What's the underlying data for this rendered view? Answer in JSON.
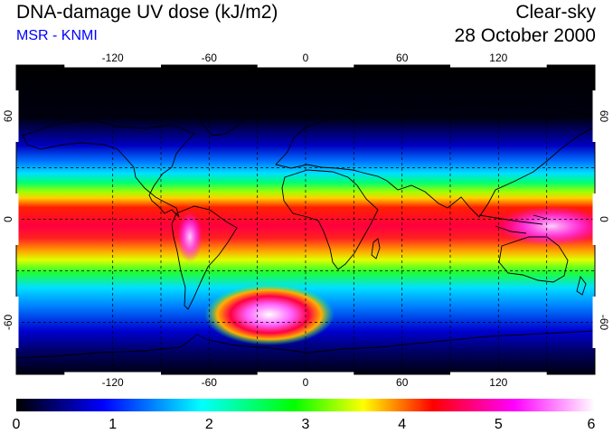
{
  "header": {
    "title": "DNA-damage UV dose (kJ/m2)",
    "source": "MSR - KNMI",
    "sky_condition": "Clear-sky",
    "date": "28 October 2000"
  },
  "map": {
    "projection": "equirectangular",
    "lon_range": [
      -180,
      180
    ],
    "lat_range": [
      -90,
      90
    ],
    "lon_ticks": [
      "-120",
      "-60",
      "0",
      "60",
      "120"
    ],
    "lat_ticks": [
      "60",
      "0",
      "-60"
    ],
    "gridlines": "dashed, every 30 degrees",
    "coastlines": true
  },
  "colorbar": {
    "ticks": [
      "0",
      "1",
      "2",
      "3",
      "4",
      "5",
      "6"
    ],
    "range": [
      0,
      6
    ],
    "colors": [
      "#000000",
      "#0000ff",
      "#00ffff",
      "#00ff00",
      "#ffff00",
      "#ff0000",
      "#ff00ff",
      "#ffffff"
    ]
  }
}
